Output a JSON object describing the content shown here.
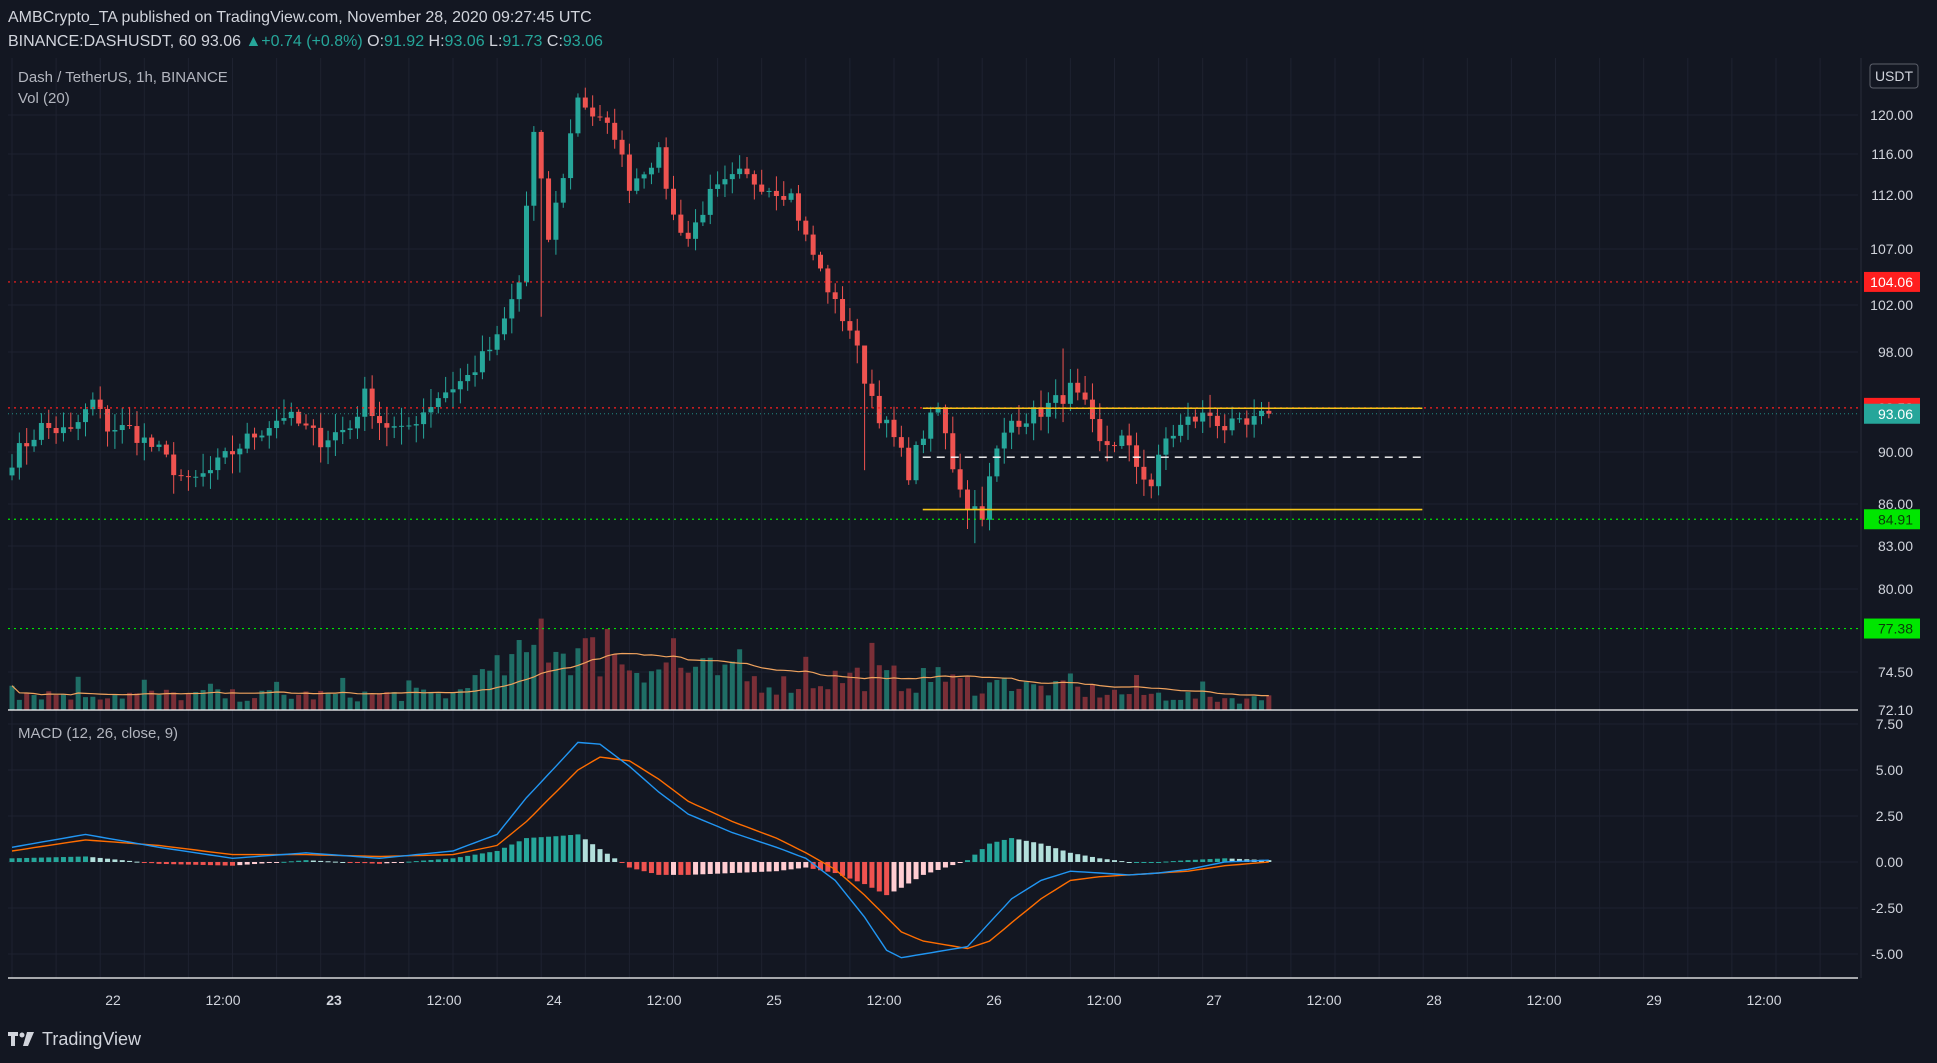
{
  "header": {
    "publisher_line": "AMBCrypto_TA published on TradingView.com, November 28, 2020 09:27:45 UTC",
    "symbol": "BINANCE:DASHUSDT, 60",
    "last": "93.06",
    "change_arrow": "▲",
    "change": "+0.74 (+0.8%)",
    "o_label": "O:",
    "o": "91.92",
    "h_label": "H:",
    "h": "93.06",
    "l_label": "L:",
    "l": "91.73",
    "c_label": "C:",
    "c": "93.06"
  },
  "legend": {
    "pair": "Dash / TetherUS, 1h, BINANCE",
    "volume": "Vol (20)",
    "macd": "MACD (12, 26, close, 9)"
  },
  "footer": {
    "brand": "TradingView",
    "logo_icon": "tradingview-logo-icon"
  },
  "colors": {
    "background": "#131722",
    "up": "#26a69a",
    "down": "#ef5350",
    "up_vol": "#1f6e66",
    "down_vol": "#7a2f37",
    "macd_line": "#2196f3",
    "signal_line": "#ff6d00",
    "range_line": "#f5c518",
    "resistance": "#ff1f1f",
    "support": "#00e600",
    "axis_text": "#d1d4dc"
  },
  "chart_data": {
    "type": "candlestick",
    "title": "Dash / TetherUS, 1h, BINANCE",
    "price_axis": {
      "currency": "USDT",
      "ticks": [
        "120.00",
        "116.00",
        "112.00",
        "107.00",
        "102.00",
        "98.00",
        "90.00",
        "86.00",
        "83.00",
        "80.00",
        "74.50",
        "72.10"
      ],
      "tick_values": [
        120,
        116,
        112,
        107,
        102,
        98,
        90,
        86,
        83,
        80,
        74.5,
        72.1
      ]
    },
    "time_axis": {
      "ticks": [
        "22",
        "12:00",
        "23",
        "12:00",
        "24",
        "12:00",
        "25",
        "12:00",
        "26",
        "12:00",
        "27",
        "12:00",
        "28",
        "12:00",
        "29",
        "12:00"
      ],
      "bold": [
        false,
        false,
        true,
        false,
        false,
        false,
        false,
        false,
        false,
        false,
        false,
        false,
        false,
        false,
        false,
        false
      ]
    },
    "markers": [
      {
        "label": "104.06",
        "value": 104.06,
        "color": "#ff1f1f"
      },
      {
        "label": "93.53",
        "value": 93.53,
        "color": "#ff1f1f"
      },
      {
        "label": "93.06",
        "value": 93.06,
        "color": "#26a69a"
      },
      {
        "label": "84.91",
        "value": 84.91,
        "color": "#00e600"
      },
      {
        "label": "77.38",
        "value": 77.38,
        "color": "#00e600"
      }
    ],
    "horizontal_lines": [
      {
        "value": 104.06,
        "style": "dotted",
        "color": "#ff1f1f"
      },
      {
        "value": 93.53,
        "style": "dotted",
        "color": "#ff1f1f"
      },
      {
        "value": 84.91,
        "style": "dotted",
        "color": "#00e600"
      },
      {
        "value": 77.38,
        "style": "dotted",
        "color": "#00e600"
      }
    ],
    "range_box": {
      "top": 93.5,
      "bottom": 85.6,
      "mid": 89.6,
      "start_bar": 125,
      "end_bar": 181
    },
    "waypoints": [
      [
        0,
        89.5
      ],
      [
        4,
        92
      ],
      [
        8,
        91.5
      ],
      [
        11,
        94
      ],
      [
        13,
        92
      ],
      [
        16,
        91.8
      ],
      [
        20,
        90
      ],
      [
        24,
        87.5
      ],
      [
        27,
        88.5
      ],
      [
        32,
        91
      ],
      [
        37,
        93
      ],
      [
        42,
        91
      ],
      [
        46,
        92
      ],
      [
        48,
        94.5
      ],
      [
        50,
        92.5
      ],
      [
        53,
        91.5
      ],
      [
        58,
        94.5
      ],
      [
        62,
        96
      ],
      [
        66,
        99
      ],
      [
        69,
        104
      ],
      [
        71,
        118
      ],
      [
        73,
        108
      ],
      [
        75,
        114
      ],
      [
        77,
        122
      ],
      [
        79,
        120
      ],
      [
        82,
        118
      ],
      [
        84,
        113
      ],
      [
        88,
        116
      ],
      [
        90,
        110
      ],
      [
        92,
        108
      ],
      [
        95,
        112
      ],
      [
        99,
        114
      ],
      [
        102,
        113
      ],
      [
        106,
        112
      ],
      [
        108,
        108
      ],
      [
        110,
        105
      ],
      [
        112,
        102
      ],
      [
        114,
        100
      ],
      [
        116,
        96
      ],
      [
        118,
        93
      ],
      [
        120,
        91
      ],
      [
        122,
        88.5
      ],
      [
        124,
        91.5
      ],
      [
        126,
        93.5
      ],
      [
        128,
        89
      ],
      [
        130,
        86
      ],
      [
        132,
        85.5
      ],
      [
        134,
        90
      ],
      [
        136,
        92.5
      ],
      [
        139,
        93
      ],
      [
        142,
        94
      ],
      [
        144,
        95
      ],
      [
        146,
        93.5
      ],
      [
        148,
        90.5
      ],
      [
        151,
        91
      ],
      [
        153,
        89
      ],
      [
        155,
        87.5
      ],
      [
        157,
        91
      ],
      [
        160,
        92.5
      ],
      [
        163,
        93
      ],
      [
        165,
        92
      ],
      [
        168,
        92
      ],
      [
        171,
        93.06
      ]
    ],
    "volume_hump": [
      [
        0,
        0.6
      ],
      [
        30,
        0.5
      ],
      [
        60,
        0.55
      ],
      [
        68,
        1.6
      ],
      [
        72,
        2.2
      ],
      [
        78,
        2.0
      ],
      [
        85,
        1.6
      ],
      [
        95,
        1.3
      ],
      [
        105,
        0.9
      ],
      [
        115,
        1.2
      ],
      [
        125,
        1.0
      ],
      [
        150,
        0.6
      ],
      [
        171,
        0.35
      ]
    ],
    "macd": {
      "ticks": [
        "7.50",
        "5.00",
        "2.50",
        "0.00",
        "-2.50",
        "-5.00"
      ],
      "tick_values": [
        7.5,
        5,
        2.5,
        0,
        -2.5,
        -5
      ],
      "macd_line": [
        [
          0,
          0.8
        ],
        [
          10,
          1.5
        ],
        [
          20,
          0.8
        ],
        [
          30,
          0.2
        ],
        [
          40,
          0.5
        ],
        [
          50,
          0.2
        ],
        [
          60,
          0.6
        ],
        [
          66,
          1.5
        ],
        [
          70,
          3.5
        ],
        [
          74,
          5.2
        ],
        [
          77,
          6.5
        ],
        [
          80,
          6.4
        ],
        [
          84,
          5.2
        ],
        [
          88,
          3.8
        ],
        [
          92,
          2.6
        ],
        [
          98,
          1.6
        ],
        [
          104,
          0.8
        ],
        [
          108,
          0.2
        ],
        [
          112,
          -1.0
        ],
        [
          116,
          -3.0
        ],
        [
          119,
          -4.8
        ],
        [
          121,
          -5.2
        ],
        [
          124,
          -5.0
        ],
        [
          127,
          -4.8
        ],
        [
          130,
          -4.6
        ],
        [
          133,
          -3.3
        ],
        [
          136,
          -2.0
        ],
        [
          140,
          -1.0
        ],
        [
          144,
          -0.5
        ],
        [
          148,
          -0.6
        ],
        [
          152,
          -0.7
        ],
        [
          156,
          -0.6
        ],
        [
          160,
          -0.4
        ],
        [
          165,
          0.0
        ],
        [
          171,
          0.1
        ]
      ],
      "signal_line": [
        [
          0,
          0.6
        ],
        [
          10,
          1.2
        ],
        [
          20,
          0.9
        ],
        [
          30,
          0.4
        ],
        [
          40,
          0.4
        ],
        [
          50,
          0.3
        ],
        [
          60,
          0.4
        ],
        [
          66,
          0.9
        ],
        [
          70,
          2.2
        ],
        [
          74,
          3.8
        ],
        [
          77,
          5.0
        ],
        [
          80,
          5.7
        ],
        [
          84,
          5.5
        ],
        [
          88,
          4.5
        ],
        [
          92,
          3.3
        ],
        [
          98,
          2.2
        ],
        [
          104,
          1.3
        ],
        [
          108,
          0.5
        ],
        [
          112,
          -0.4
        ],
        [
          116,
          -1.8
        ],
        [
          119,
          -3.0
        ],
        [
          121,
          -3.8
        ],
        [
          124,
          -4.3
        ],
        [
          127,
          -4.5
        ],
        [
          130,
          -4.7
        ],
        [
          133,
          -4.3
        ],
        [
          136,
          -3.3
        ],
        [
          140,
          -2.0
        ],
        [
          144,
          -1.0
        ],
        [
          148,
          -0.8
        ],
        [
          152,
          -0.7
        ],
        [
          156,
          -0.6
        ],
        [
          160,
          -0.5
        ],
        [
          165,
          -0.2
        ],
        [
          171,
          0.0
        ]
      ]
    }
  }
}
